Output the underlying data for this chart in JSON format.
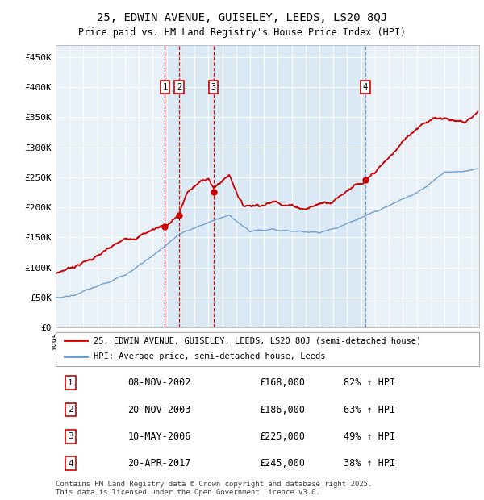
{
  "title": "25, EDWIN AVENUE, GUISELEY, LEEDS, LS20 8QJ",
  "subtitle": "Price paid vs. HM Land Registry's House Price Index (HPI)",
  "legend_line1": "25, EDWIN AVENUE, GUISELEY, LEEDS, LS20 8QJ (semi-detached house)",
  "legend_line2": "HPI: Average price, semi-detached house, Leeds",
  "footer": "Contains HM Land Registry data © Crown copyright and database right 2025.\nThis data is licensed under the Open Government Licence v3.0.",
  "ylim": [
    0,
    470000
  ],
  "yticks": [
    0,
    50000,
    100000,
    150000,
    200000,
    250000,
    300000,
    350000,
    400000,
    450000
  ],
  "ytick_labels": [
    "£0",
    "£50K",
    "£100K",
    "£150K",
    "£200K",
    "£250K",
    "£300K",
    "£350K",
    "£400K",
    "£450K"
  ],
  "xlim_start": 1995.0,
  "xlim_end": 2025.5,
  "background_color": "#e8f0f8",
  "plot_bg_color": "#e8f0f8",
  "grid_color": "#ffffff",
  "shade_color": "#d0e4f4",
  "sale_markers": [
    {
      "num": 1,
      "year": 2002.87,
      "price": 168000,
      "date": "08-NOV-2002",
      "hpi_pct": "82%",
      "line_style": "red_dashed"
    },
    {
      "num": 2,
      "year": 2003.9,
      "price": 186000,
      "date": "20-NOV-2003",
      "hpi_pct": "63%",
      "line_style": "red_dashed"
    },
    {
      "num": 3,
      "year": 2006.37,
      "price": 225000,
      "date": "10-MAY-2006",
      "hpi_pct": "49%",
      "line_style": "red_dashed"
    },
    {
      "num": 4,
      "year": 2017.31,
      "price": 245000,
      "date": "20-APR-2017",
      "hpi_pct": "38%",
      "line_style": "blue_dashed"
    }
  ],
  "table_rows": [
    {
      "num": 1,
      "date": "08-NOV-2002",
      "price": "£168,000",
      "hpi": "82% ↑ HPI"
    },
    {
      "num": 2,
      "date": "20-NOV-2003",
      "price": "£186,000",
      "hpi": "63% ↑ HPI"
    },
    {
      "num": 3,
      "date": "10-MAY-2006",
      "price": "£225,000",
      "hpi": "49% ↑ HPI"
    },
    {
      "num": 4,
      "date": "20-APR-2017",
      "price": "£245,000",
      "hpi": "38% ↑ HPI"
    }
  ],
  "red_color": "#cc0000",
  "blue_color": "#6699cc",
  "marker_red_dashed": "#cc0000",
  "marker_blue_dashed": "#6699cc"
}
